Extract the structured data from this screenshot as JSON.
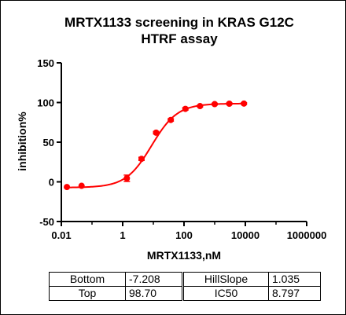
{
  "chart_data": {
    "type": "scatter",
    "title": [
      "MRTX1133 screening in KRAS G12C",
      "HTRF assay"
    ],
    "xlabel": "MRTX1133,nM",
    "ylabel": "inhibition%",
    "x_scale": "log",
    "xlim": [
      0.01,
      1000000
    ],
    "ylim": [
      -50,
      150
    ],
    "x_ticks": [
      0.01,
      1,
      100,
      10000,
      1000000
    ],
    "x_tick_labels": [
      "0.01",
      "1",
      "100",
      "10000",
      "1000000"
    ],
    "y_ticks": [
      -50,
      0,
      50,
      100,
      150
    ],
    "y_tick_labels": [
      "-50",
      "0",
      "50",
      "100",
      "150"
    ],
    "grid": false,
    "series": [
      {
        "color": "#ff0000",
        "x": [
          0.0152,
          0.0457,
          1.37,
          4.12,
          12.3,
          37,
          111,
          333,
          1000,
          3000,
          9000
        ],
        "y": [
          -6.5,
          -5,
          4.5,
          29,
          62,
          78,
          92,
          95.5,
          98,
          98.5,
          98.7
        ],
        "error": [
          0,
          0,
          4,
          2,
          1.5,
          1.5,
          1.5,
          1,
          1,
          1,
          1
        ]
      }
    ],
    "fit": {
      "model": "four-parameter logistic",
      "color": "#ff0000"
    }
  },
  "params": {
    "left": [
      {
        "name": "Bottom",
        "value": "-7.208"
      },
      {
        "name": "Top",
        "value": "98.70"
      }
    ],
    "right": [
      {
        "name": "HillSlope",
        "value": "1.035"
      },
      {
        "name": "IC50",
        "value": "8.797"
      }
    ]
  }
}
